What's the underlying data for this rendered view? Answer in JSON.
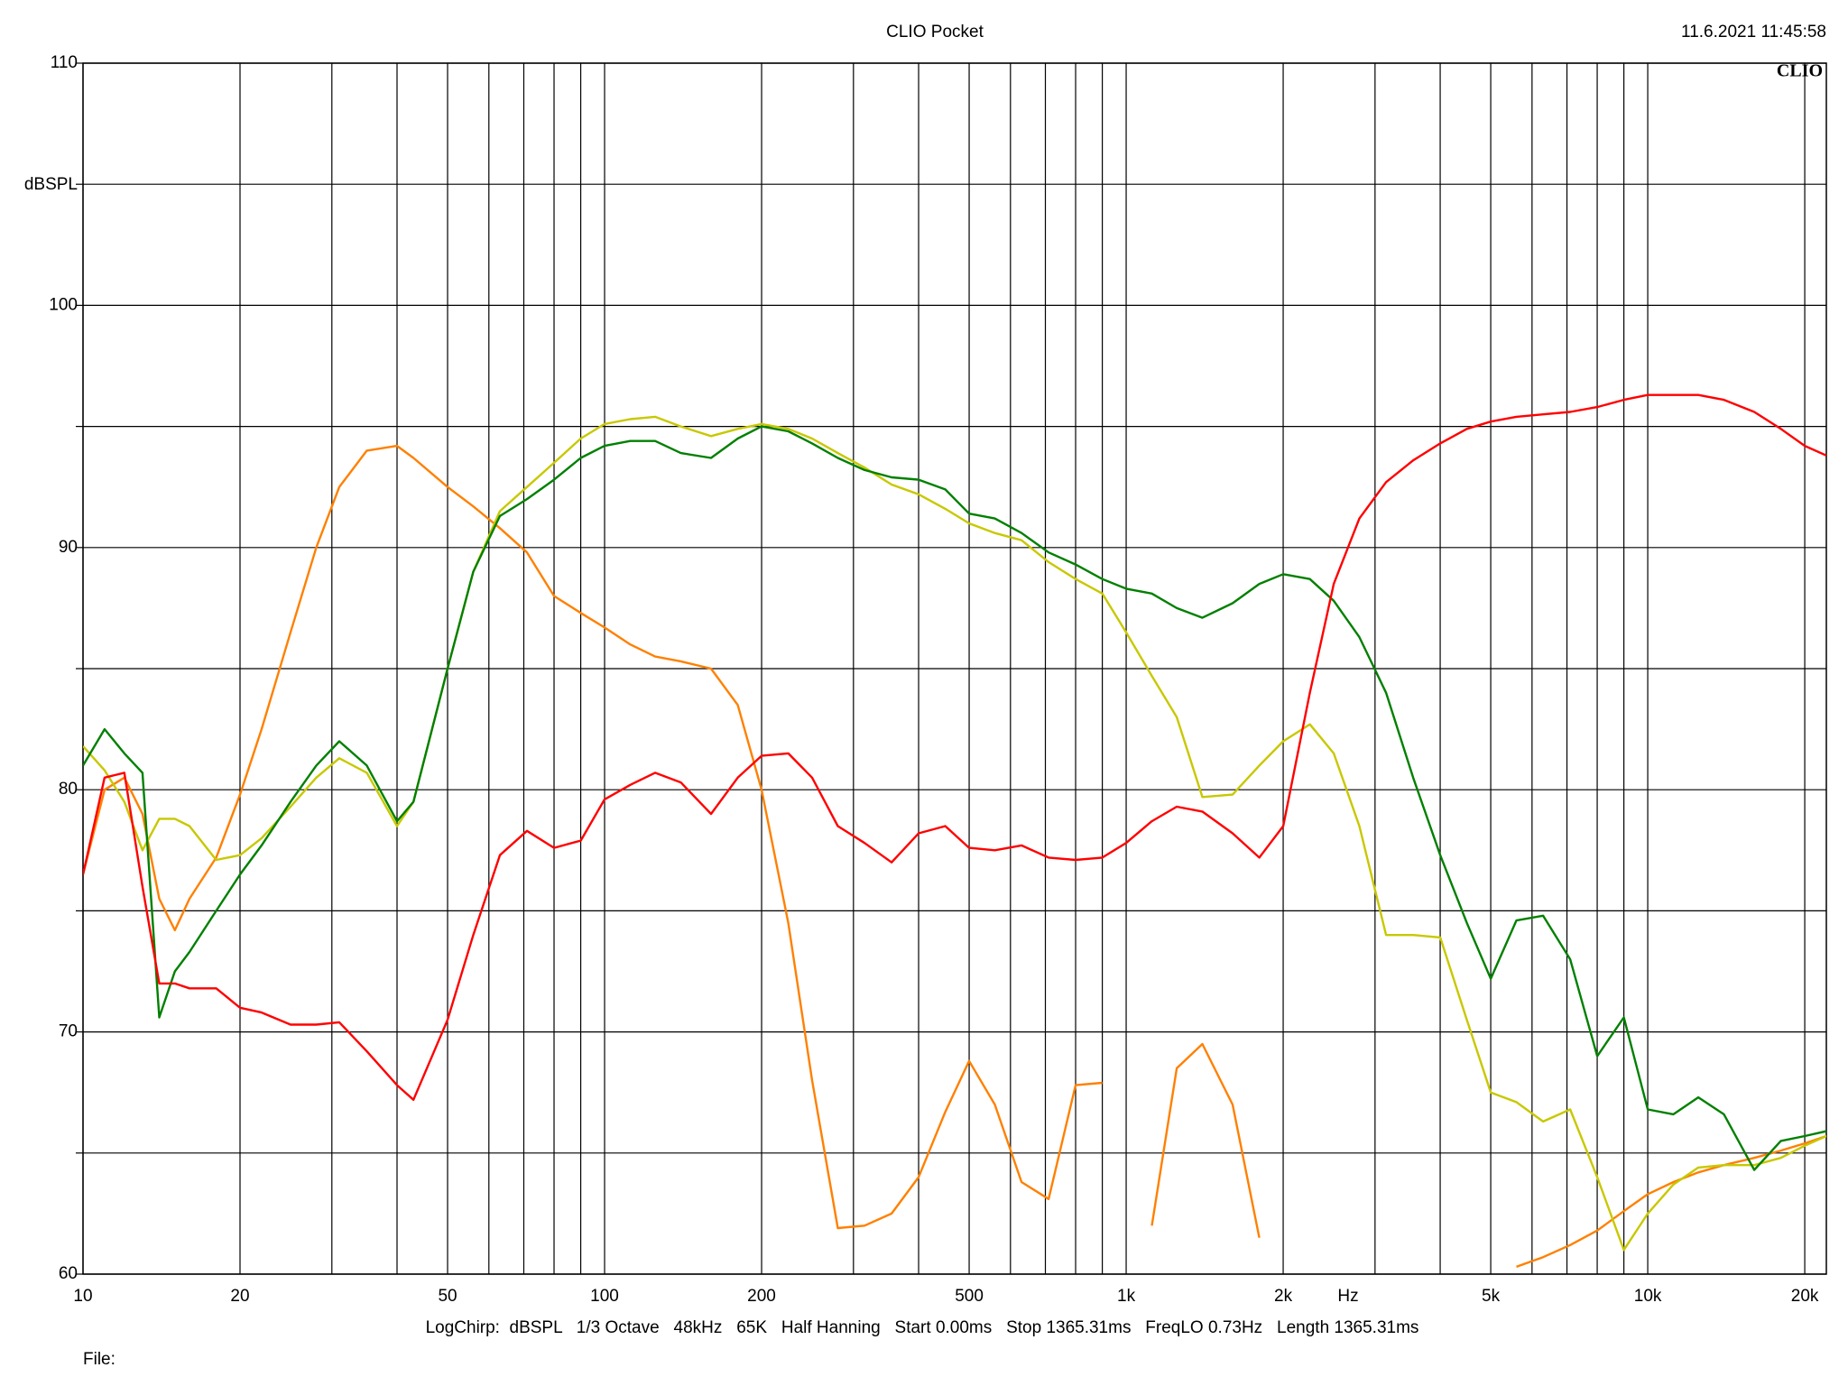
{
  "chart_data": {
    "type": "line",
    "title": "CLIO Pocket",
    "timestamp": "11.6.2021 11:45:58",
    "logo": "CLIO",
    "y_label": "dBSPL",
    "x_label": "Hz",
    "footer": "LogChirp:  dBSPL   1/3 Octave   48kHz   65K   Half Hanning   Start 0.00ms   Stop 1365.31ms   FreqLO 0.73Hz   Length 1365.31ms",
    "file_label": "File:",
    "log_x": true,
    "grid": true,
    "xlim": [
      10,
      22000
    ],
    "ylim": [
      60,
      110
    ],
    "xticks": [
      10,
      20,
      {
        "value": 30,
        "label": null
      },
      {
        "value": 40,
        "label": null
      },
      50,
      {
        "value": 60,
        "label": null
      },
      {
        "value": 70,
        "label": null
      },
      {
        "value": 80,
        "label": null
      },
      {
        "value": 90,
        "label": null
      },
      100,
      200,
      {
        "value": 300,
        "label": null
      },
      {
        "value": 400,
        "label": null
      },
      500,
      {
        "value": 600,
        "label": null
      },
      {
        "value": 700,
        "label": null
      },
      {
        "value": 800,
        "label": null
      },
      {
        "value": 900,
        "label": null
      },
      {
        "value": 1000,
        "label": "1k"
      },
      {
        "value": 2000,
        "label": "2k"
      },
      {
        "value": 3000,
        "label": null
      },
      {
        "value": 4000,
        "label": null
      },
      {
        "value": 5000,
        "label": "5k"
      },
      {
        "value": 6000,
        "label": null
      },
      {
        "value": 7000,
        "label": null
      },
      {
        "value": 8000,
        "label": null
      },
      {
        "value": 9000,
        "label": null
      },
      {
        "value": 10000,
        "label": "10k"
      },
      {
        "value": 20000,
        "label": "20k"
      }
    ],
    "yticks": [
      60,
      {
        "value": 65,
        "label": null
      },
      70,
      {
        "value": 75,
        "label": null
      },
      80,
      {
        "value": 85,
        "label": null
      },
      90,
      {
        "value": 95,
        "label": null
      },
      100,
      {
        "value": 105,
        "label": null
      },
      110
    ],
    "x": [
      10,
      11,
      12,
      13,
      14,
      15,
      16,
      18,
      20,
      22,
      25,
      28,
      31,
      35,
      40,
      43,
      50,
      56,
      63,
      71,
      80,
      90,
      100,
      112,
      125,
      140,
      160,
      180,
      200,
      225,
      250,
      280,
      315,
      355,
      400,
      450,
      500,
      560,
      630,
      710,
      800,
      900,
      1000,
      1120,
      1250,
      1400,
      1600,
      1800,
      2000,
      2250,
      2500,
      2800,
      3150,
      3550,
      4000,
      4500,
      5000,
      5600,
      6300,
      7100,
      8000,
      9000,
      10000,
      11200,
      12500,
      14000,
      16000,
      18000,
      20000,
      22000
    ],
    "series": [
      {
        "color": "#ff8000",
        "values": [
          76.5,
          80,
          80.5,
          79,
          75.5,
          74.2,
          75.5,
          77.2,
          79.8,
          82.5,
          86.5,
          90,
          92.5,
          94,
          94.2,
          93.7,
          92.5,
          91.7,
          90.8,
          89.8,
          88,
          87.3,
          86.7,
          86,
          85.5,
          85.3,
          85,
          83.5,
          80,
          74.5,
          68,
          61.9,
          62,
          62.5,
          64,
          66.7,
          68.8,
          67,
          63.8,
          63.1,
          67.8,
          67.9,
          null,
          62,
          68.5,
          69.5,
          67,
          61.5,
          null,
          null,
          null,
          null,
          null,
          null,
          null,
          null,
          null,
          60.3,
          60.7,
          61.2,
          61.8,
          62.6,
          63.3,
          63.8,
          64.2,
          64.5,
          64.8,
          65.1,
          65.4,
          65.7
        ]
      },
      {
        "color": "#c8c800",
        "values": [
          81.8,
          80.8,
          79.5,
          77.5,
          78.8,
          78.8,
          78.5,
          77.1,
          77.3,
          78,
          79.3,
          80.5,
          81.3,
          80.7,
          78.5,
          79.5,
          85,
          89,
          91.5,
          92.5,
          93.5,
          94.5,
          95.1,
          95.3,
          95.4,
          95,
          94.6,
          94.9,
          95.1,
          94.9,
          94.5,
          93.9,
          93.3,
          92.6,
          92.2,
          91.6,
          91,
          90.6,
          90.3,
          89.4,
          88.7,
          88.1,
          86.5,
          84.7,
          83,
          79.7,
          79.8,
          81,
          82,
          82.7,
          81.5,
          78.5,
          74,
          74,
          73.9,
          70.5,
          67.5,
          67.1,
          66.3,
          66.8,
          64,
          61,
          62.5,
          63.7,
          64.4,
          64.5,
          64.5,
          64.8,
          65.3,
          65.7
        ]
      },
      {
        "color": "#008000",
        "values": [
          81,
          82.5,
          81.5,
          80.7,
          70.6,
          72.5,
          73.3,
          75,
          76.5,
          77.7,
          79.5,
          81,
          82,
          81,
          78.7,
          79.5,
          85,
          89,
          91.3,
          92,
          92.8,
          93.7,
          94.2,
          94.4,
          94.4,
          93.9,
          93.7,
          94.5,
          95,
          94.8,
          94.3,
          93.7,
          93.2,
          92.9,
          92.8,
          92.4,
          91.4,
          91.2,
          90.6,
          89.8,
          89.3,
          88.7,
          88.3,
          88.1,
          87.5,
          87.1,
          87.7,
          88.5,
          88.9,
          88.7,
          87.8,
          86.3,
          84,
          80.5,
          77.3,
          74.5,
          72.2,
          74.6,
          74.8,
          73,
          69,
          70.6,
          66.8,
          66.6,
          67.3,
          66.6,
          64.3,
          65.5,
          65.7,
          65.9
        ]
      },
      {
        "color": "#ff0000",
        "values": [
          76.5,
          80.5,
          80.7,
          76,
          72,
          72,
          71.8,
          71.8,
          71,
          70.8,
          70.3,
          70.3,
          70.4,
          69.2,
          67.8,
          67.2,
          70.5,
          74,
          77.3,
          78.3,
          77.6,
          77.9,
          79.6,
          80.2,
          80.7,
          80.3,
          79,
          80.5,
          81.4,
          81.5,
          80.5,
          78.5,
          77.8,
          77,
          78.2,
          78.5,
          77.6,
          77.5,
          77.7,
          77.2,
          77.1,
          77.2,
          77.8,
          78.7,
          79.3,
          79.1,
          78.2,
          77.2,
          78.5,
          84,
          88.5,
          91.2,
          92.7,
          93.6,
          94.3,
          94.9,
          95.2,
          95.4,
          95.5,
          95.6,
          95.8,
          96.1,
          96.3,
          96.3,
          96.3,
          96.1,
          95.6,
          94.9,
          94.2,
          93.8
        ]
      }
    ]
  }
}
